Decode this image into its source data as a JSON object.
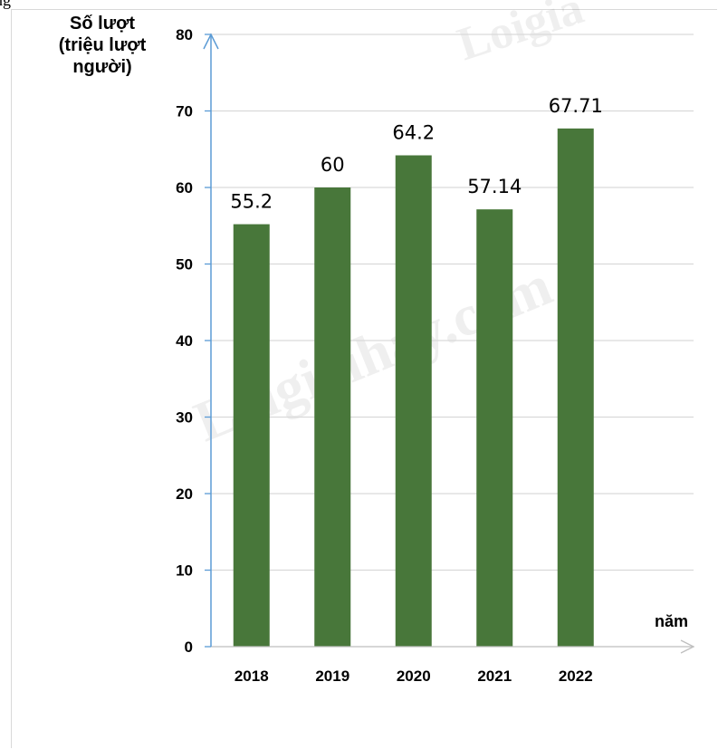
{
  "page": {
    "top_text_fragment": "ng"
  },
  "watermarks": [
    "Loigiaihay.com",
    "Loigia"
  ],
  "chart_data": {
    "type": "bar",
    "categories": [
      "2018",
      "2019",
      "2020",
      "2021",
      "2022"
    ],
    "values": [
      55.2,
      60,
      64.2,
      57.14,
      67.71
    ],
    "data_labels": [
      "55.2",
      "60",
      "64.2",
      "57.14",
      "67.71"
    ],
    "ylabel_lines": [
      "Số lượt",
      "(triệu lượt",
      "người)"
    ],
    "xlabel": "năm",
    "ylim": [
      0,
      80
    ],
    "yticks": [
      0,
      10,
      20,
      30,
      40,
      50,
      60,
      70,
      80
    ],
    "grid": true,
    "legend": "none",
    "colors": {
      "bar": "#48773a",
      "axis": "#5b9bd5",
      "grid": "#d9d9d9"
    }
  }
}
